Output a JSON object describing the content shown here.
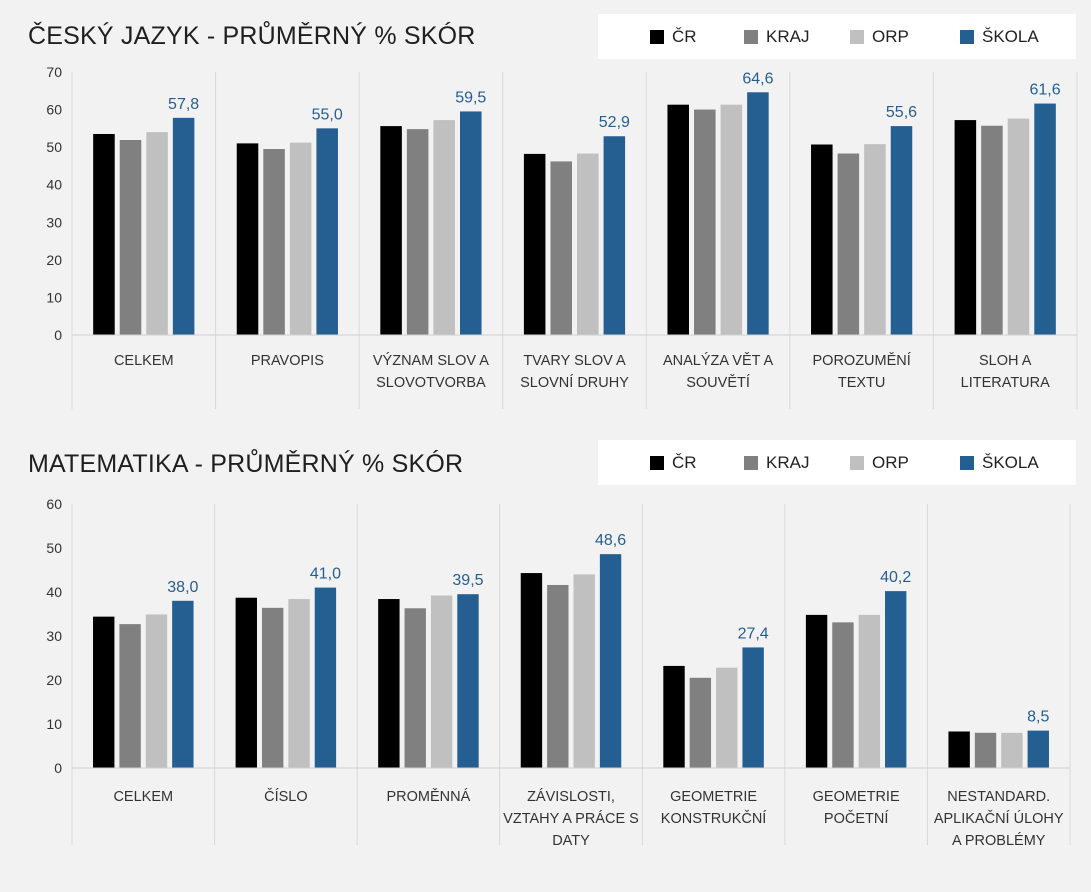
{
  "colors": {
    "cr": "#000000",
    "kraj": "#808080",
    "orp": "#c0c0c0",
    "skola": "#255e91",
    "value_label": "#255e91",
    "gridline": "#d9d9d9"
  },
  "chart_data": [
    {
      "type": "bar",
      "title": "ČESKÝ JAZYK - PRŮMĚRNÝ % SKÓR",
      "categories": [
        [
          "CELKEM"
        ],
        [
          "PRAVOPIS"
        ],
        [
          "VÝZNAM SLOV A",
          "SLOVOTVORBA"
        ],
        [
          "TVARY SLOV A",
          "SLOVNÍ DRUHY"
        ],
        [
          "ANALÝZA VĚT A",
          "SOUVĚTÍ"
        ],
        [
          "POROZUMĚNÍ",
          "TEXTU"
        ],
        [
          "SLOH A",
          "LITERATURA"
        ]
      ],
      "series": [
        {
          "name": "ČR",
          "values": [
            53.5,
            51.0,
            55.6,
            48.2,
            61.3,
            50.7,
            57.2
          ]
        },
        {
          "name": "KRAJ",
          "values": [
            51.9,
            49.5,
            54.8,
            46.2,
            60.0,
            48.3,
            55.7
          ]
        },
        {
          "name": "ORP",
          "values": [
            54.0,
            51.2,
            57.2,
            48.3,
            61.3,
            50.8,
            57.6
          ]
        },
        {
          "name": "ŠKOLA",
          "values": [
            57.8,
            55.0,
            59.5,
            52.9,
            64.6,
            55.6,
            61.6
          ]
        }
      ],
      "value_labels": [
        "57,8",
        "55,0",
        "59,5",
        "52,9",
        "64,6",
        "55,6",
        "61,6"
      ],
      "ylim": [
        0,
        70
      ],
      "yticks": [
        0,
        10,
        20,
        30,
        40,
        50,
        60,
        70
      ],
      "legend_position": "top-right",
      "category_separators": true
    },
    {
      "type": "bar",
      "title": "MATEMATIKA - PRŮMĚRNÝ % SKÓR",
      "categories": [
        [
          "CELKEM"
        ],
        [
          "ČÍSLO"
        ],
        [
          "PROMĚNNÁ"
        ],
        [
          "ZÁVISLOSTI,",
          "VZTAHY A PRÁCE S",
          "DATY"
        ],
        [
          "GEOMETRIE",
          "KONSTRUKČNÍ"
        ],
        [
          "GEOMETRIE",
          "POČETNÍ"
        ],
        [
          "NESTANDARD.",
          "APLIKAČNÍ ÚLOHY",
          "A PROBLÉMY"
        ]
      ],
      "series": [
        {
          "name": "ČR",
          "values": [
            34.4,
            38.7,
            38.4,
            44.3,
            23.2,
            34.8,
            8.3
          ]
        },
        {
          "name": "KRAJ",
          "values": [
            32.7,
            36.4,
            36.3,
            41.6,
            20.5,
            33.1,
            8.0
          ]
        },
        {
          "name": "ORP",
          "values": [
            34.9,
            38.4,
            39.2,
            44.0,
            22.8,
            34.8,
            8.0
          ]
        },
        {
          "name": "ŠKOLA",
          "values": [
            38.0,
            41.0,
            39.5,
            48.6,
            27.4,
            40.2,
            8.5
          ]
        }
      ],
      "value_labels": [
        "38,0",
        "41,0",
        "39,5",
        "48,6",
        "27,4",
        "40,2",
        "8,5"
      ],
      "ylim": [
        0,
        60
      ],
      "yticks": [
        0,
        10,
        20,
        30,
        40,
        50,
        60
      ],
      "legend_position": "top-right",
      "category_separators": true
    }
  ]
}
